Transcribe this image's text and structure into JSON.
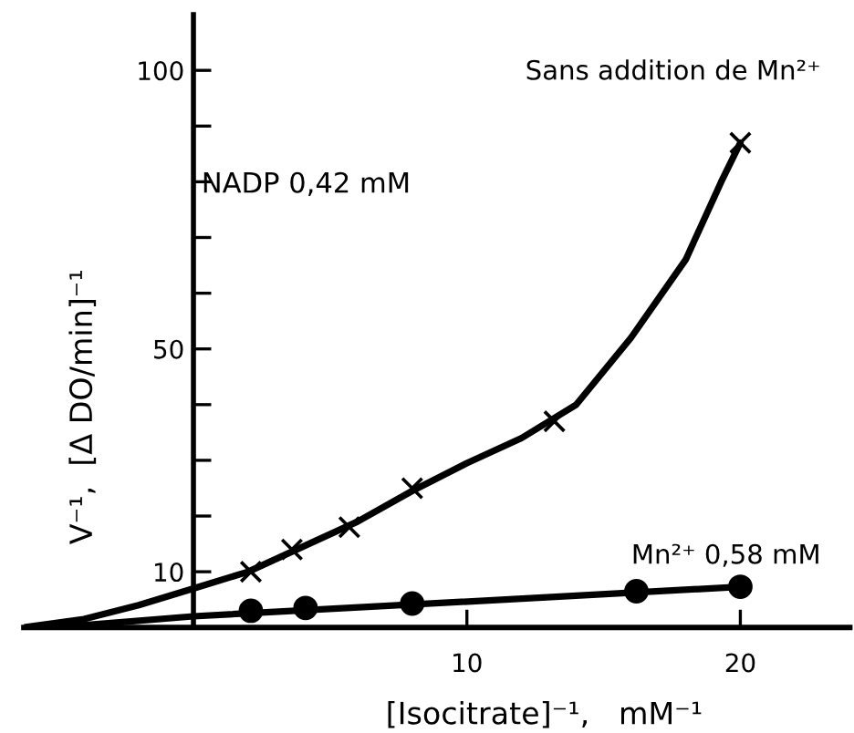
{
  "chart_data": {
    "type": "scatter",
    "xlabel": "[Isocitrate]⁻¹,   mM⁻¹",
    "ylabel": "V⁻¹,  [Δ DO/min]⁻¹",
    "xlim": [
      -6.2,
      24
    ],
    "ylim": [
      0,
      110
    ],
    "xticks": [
      10,
      20
    ],
    "yticks": [
      {
        "value": 10,
        "label": "10"
      },
      {
        "value": 20,
        "label": null
      },
      {
        "value": 30,
        "label": null
      },
      {
        "value": 40,
        "label": null
      },
      {
        "value": 50,
        "label": "50"
      },
      {
        "value": 60,
        "label": null
      },
      {
        "value": 70,
        "label": null
      },
      {
        "value": 80,
        "label": null
      },
      {
        "value": 90,
        "label": null
      },
      {
        "value": 100,
        "label": "100"
      }
    ],
    "grid": false,
    "series": [
      {
        "marker": "cross",
        "color": "#000000",
        "x": [
          2.1,
          3.6,
          5.7,
          8.0,
          13.2,
          20.0
        ],
        "values": [
          10,
          14,
          18,
          25,
          37,
          87
        ]
      },
      {
        "type": "line",
        "marker": "none",
        "color": "#000000",
        "x": [
          -6.2,
          -4,
          -2,
          0,
          2,
          4,
          6,
          8,
          10,
          12,
          14,
          16,
          18,
          19.3,
          20
        ],
        "values": [
          0,
          1.5,
          4,
          7,
          10,
          14.5,
          19,
          24.5,
          29.5,
          34,
          40,
          52,
          66,
          80,
          87
        ]
      },
      {
        "marker": "circle",
        "color": "#000000",
        "x": [
          2.1,
          4.1,
          8.0,
          16.2,
          20.0
        ],
        "values": [
          3,
          3.5,
          4.3,
          6.5,
          7.3
        ]
      },
      {
        "type": "line",
        "marker": "none",
        "color": "#000000",
        "x": [
          -5,
          0,
          20
        ],
        "values": [
          0,
          2,
          7.3
        ]
      }
    ],
    "annotations": [
      "Sans addition de Mn²⁺",
      "Mn²⁺ 0,58 mM",
      "NADP 0,42 mM"
    ]
  }
}
